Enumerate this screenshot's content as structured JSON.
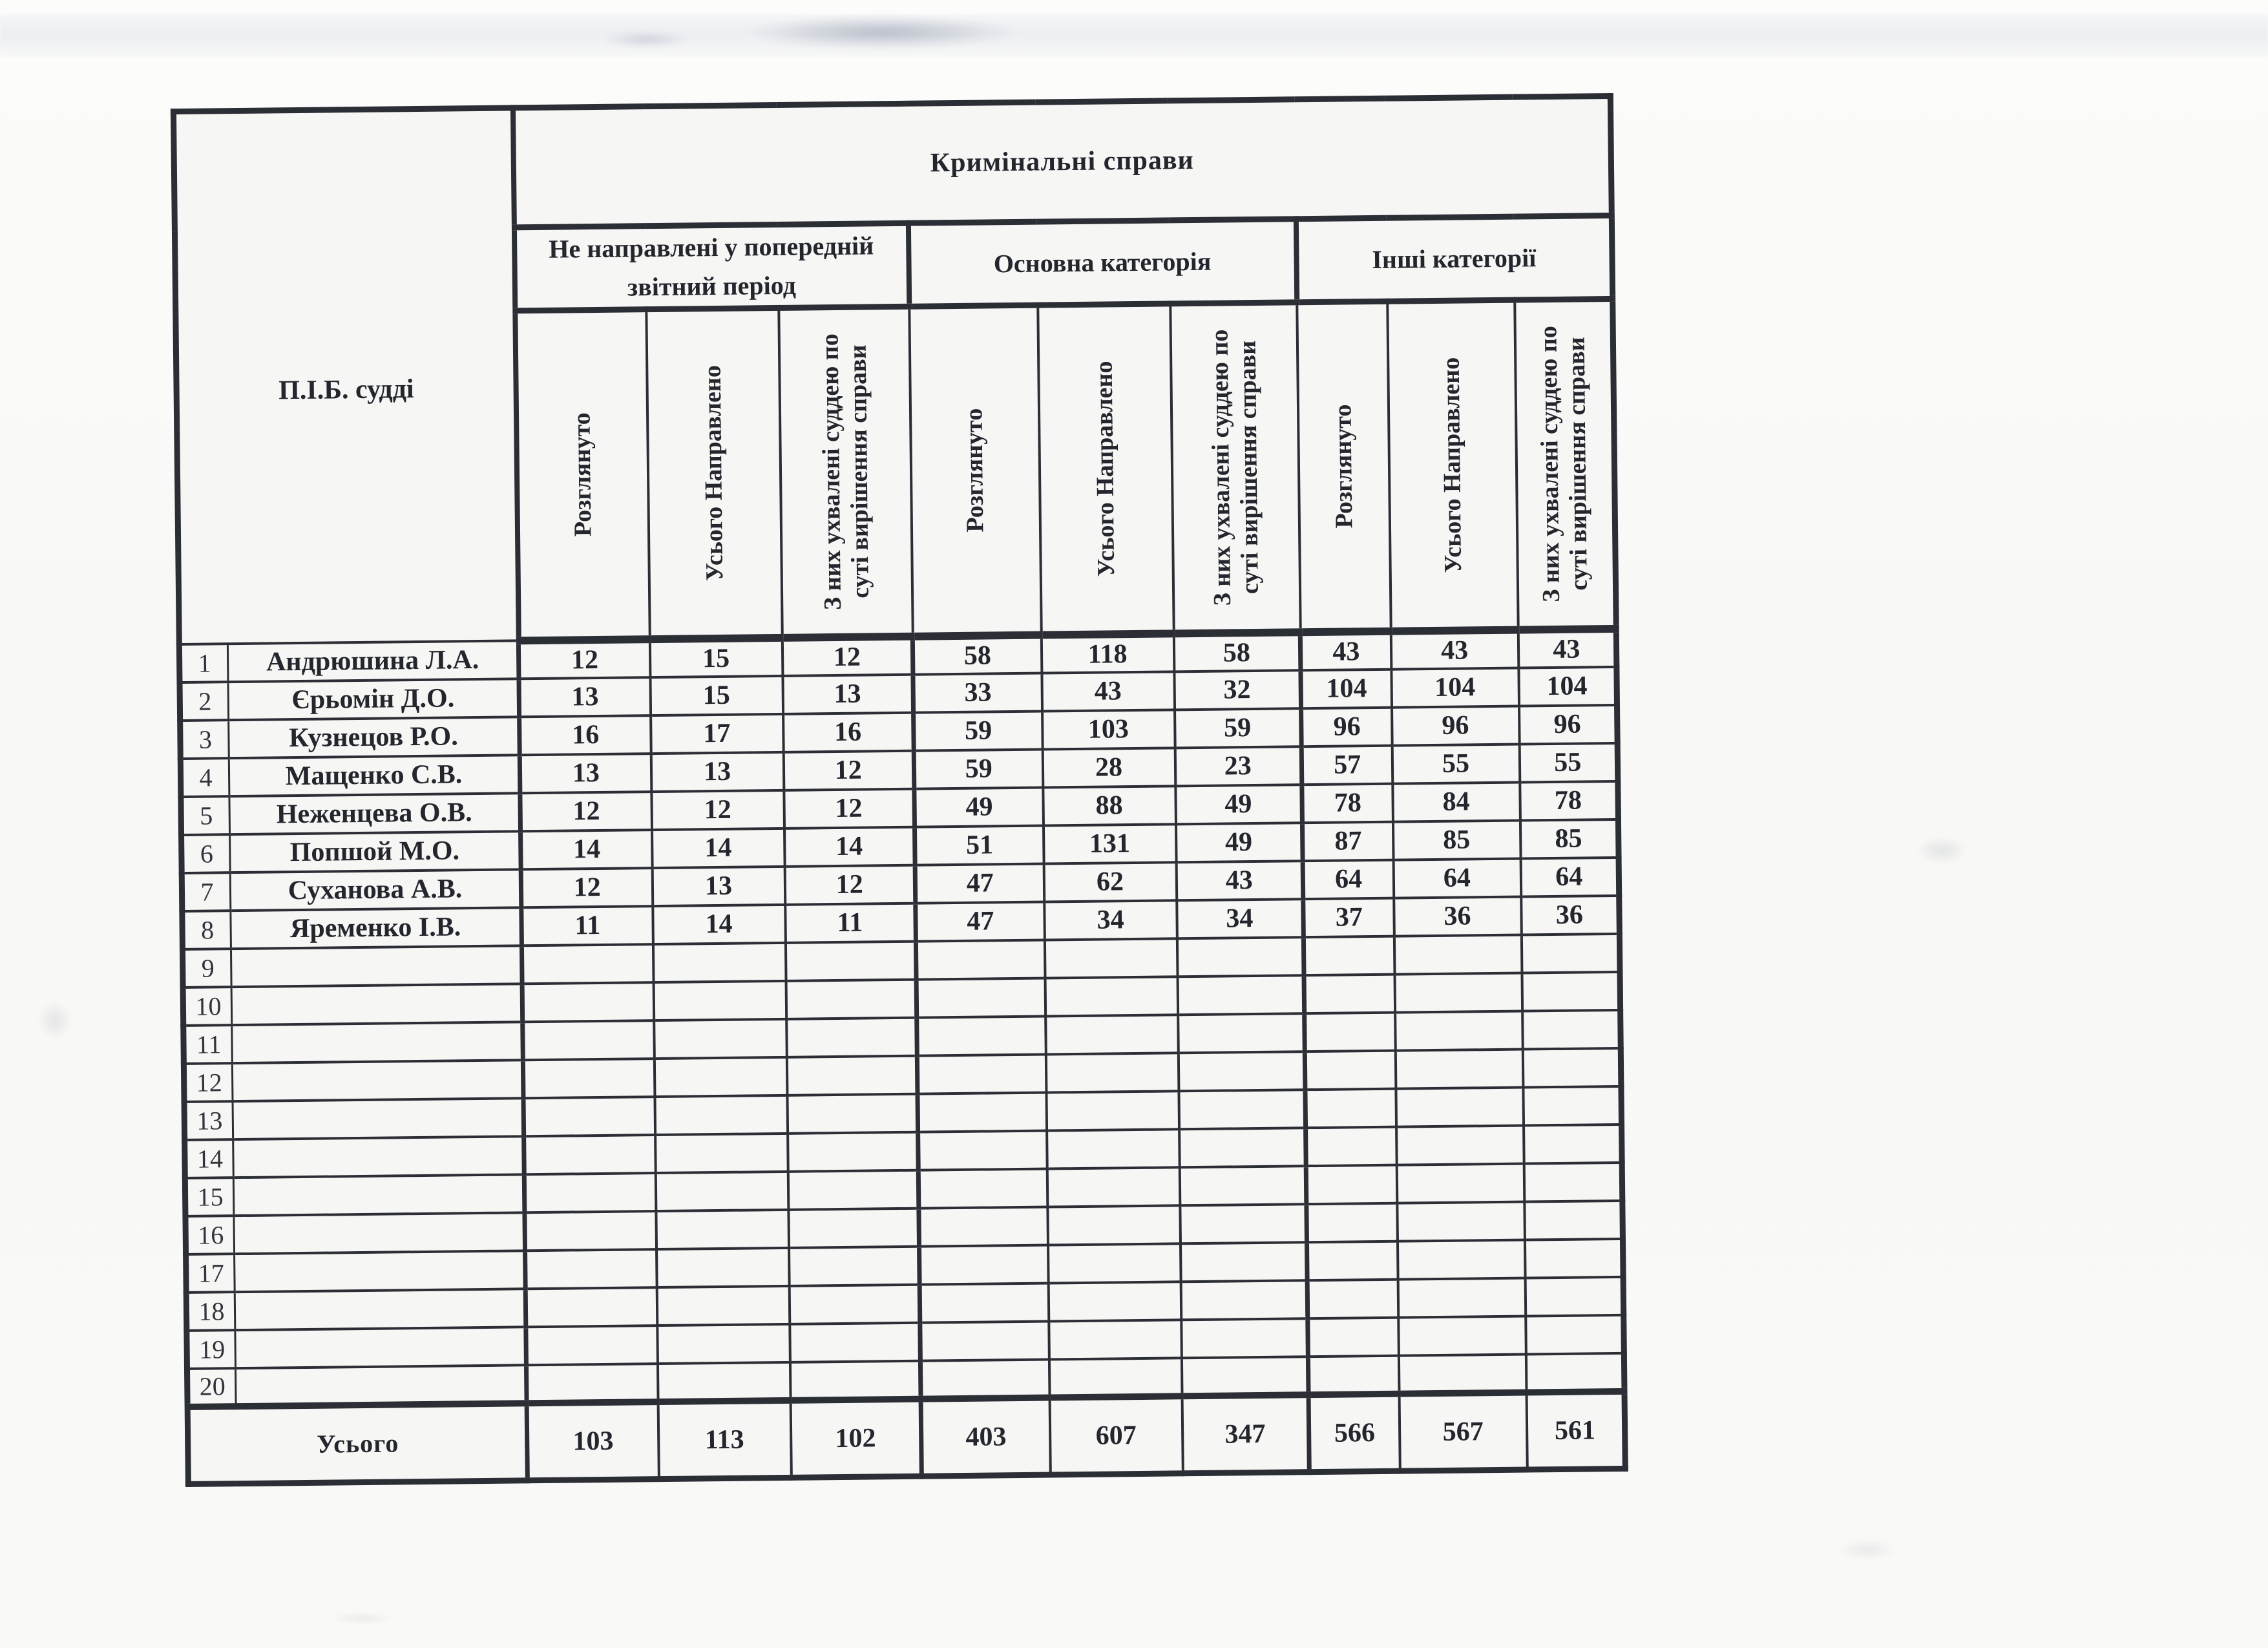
{
  "colors": {
    "ink": "#24262e",
    "border": "#2c2e36",
    "paper": "#f6f6f4"
  },
  "table": {
    "title": "Кримінальні справи",
    "judge_header": "П.І.Б. судді",
    "groups": [
      "Не направлені у попередній звітний період",
      "Основна категорія",
      "Інші категорії"
    ],
    "sub_headers": [
      "Розглянуто",
      "Усього Направлено",
      "З них ухвалені суддею по суті вирішення справи",
      "Розглянуто",
      "Усього Направлено",
      "З них ухвалені суддею по суті вирішення справи",
      "Розглянуто",
      "Усього Направлено",
      "З них ухвалені суддею по суті вирішення справи"
    ],
    "rows": [
      {
        "num": "1",
        "name": "Андрюшина Л.А.",
        "values": [
          "12",
          "15",
          "12",
          "58",
          "118",
          "58",
          "43",
          "43",
          "43"
        ]
      },
      {
        "num": "2",
        "name": "Єрьомін Д.О.",
        "values": [
          "13",
          "15",
          "13",
          "33",
          "43",
          "32",
          "104",
          "104",
          "104"
        ]
      },
      {
        "num": "3",
        "name": "Кузнецов Р.О.",
        "values": [
          "16",
          "17",
          "16",
          "59",
          "103",
          "59",
          "96",
          "96",
          "96"
        ]
      },
      {
        "num": "4",
        "name": "Мащенко С.В.",
        "values": [
          "13",
          "13",
          "12",
          "59",
          "28",
          "23",
          "57",
          "55",
          "55"
        ]
      },
      {
        "num": "5",
        "name": "Неженцева О.В.",
        "values": [
          "12",
          "12",
          "12",
          "49",
          "88",
          "49",
          "78",
          "84",
          "78"
        ]
      },
      {
        "num": "6",
        "name": "Попшой М.О.",
        "values": [
          "14",
          "14",
          "14",
          "51",
          "131",
          "49",
          "87",
          "85",
          "85"
        ]
      },
      {
        "num": "7",
        "name": "Суханова А.В.",
        "values": [
          "12",
          "13",
          "12",
          "47",
          "62",
          "43",
          "64",
          "64",
          "64"
        ]
      },
      {
        "num": "8",
        "name": "Яременко І.В.",
        "values": [
          "11",
          "14",
          "11",
          "47",
          "34",
          "34",
          "37",
          "36",
          "36"
        ]
      },
      {
        "num": "9",
        "name": "",
        "values": [
          "",
          "",
          "",
          "",
          "",
          "",
          "",
          "",
          ""
        ]
      },
      {
        "num": "10",
        "name": "",
        "values": [
          "",
          "",
          "",
          "",
          "",
          "",
          "",
          "",
          ""
        ]
      },
      {
        "num": "11",
        "name": "",
        "values": [
          "",
          "",
          "",
          "",
          "",
          "",
          "",
          "",
          ""
        ]
      },
      {
        "num": "12",
        "name": "",
        "values": [
          "",
          "",
          "",
          "",
          "",
          "",
          "",
          "",
          ""
        ]
      },
      {
        "num": "13",
        "name": "",
        "values": [
          "",
          "",
          "",
          "",
          "",
          "",
          "",
          "",
          ""
        ]
      },
      {
        "num": "14",
        "name": "",
        "values": [
          "",
          "",
          "",
          "",
          "",
          "",
          "",
          "",
          ""
        ]
      },
      {
        "num": "15",
        "name": "",
        "values": [
          "",
          "",
          "",
          "",
          "",
          "",
          "",
          "",
          ""
        ]
      },
      {
        "num": "16",
        "name": "",
        "values": [
          "",
          "",
          "",
          "",
          "",
          "",
          "",
          "",
          ""
        ]
      },
      {
        "num": "17",
        "name": "",
        "values": [
          "",
          "",
          "",
          "",
          "",
          "",
          "",
          "",
          ""
        ]
      },
      {
        "num": "18",
        "name": "",
        "values": [
          "",
          "",
          "",
          "",
          "",
          "",
          "",
          "",
          ""
        ]
      },
      {
        "num": "19",
        "name": "",
        "values": [
          "",
          "",
          "",
          "",
          "",
          "",
          "",
          "",
          ""
        ]
      },
      {
        "num": "20",
        "name": "",
        "values": [
          "",
          "",
          "",
          "",
          "",
          "",
          "",
          "",
          ""
        ]
      }
    ],
    "total_label": "Усього",
    "total_values": [
      "103",
      "113",
      "102",
      "403",
      "607",
      "347",
      "566",
      "567",
      "561"
    ]
  }
}
